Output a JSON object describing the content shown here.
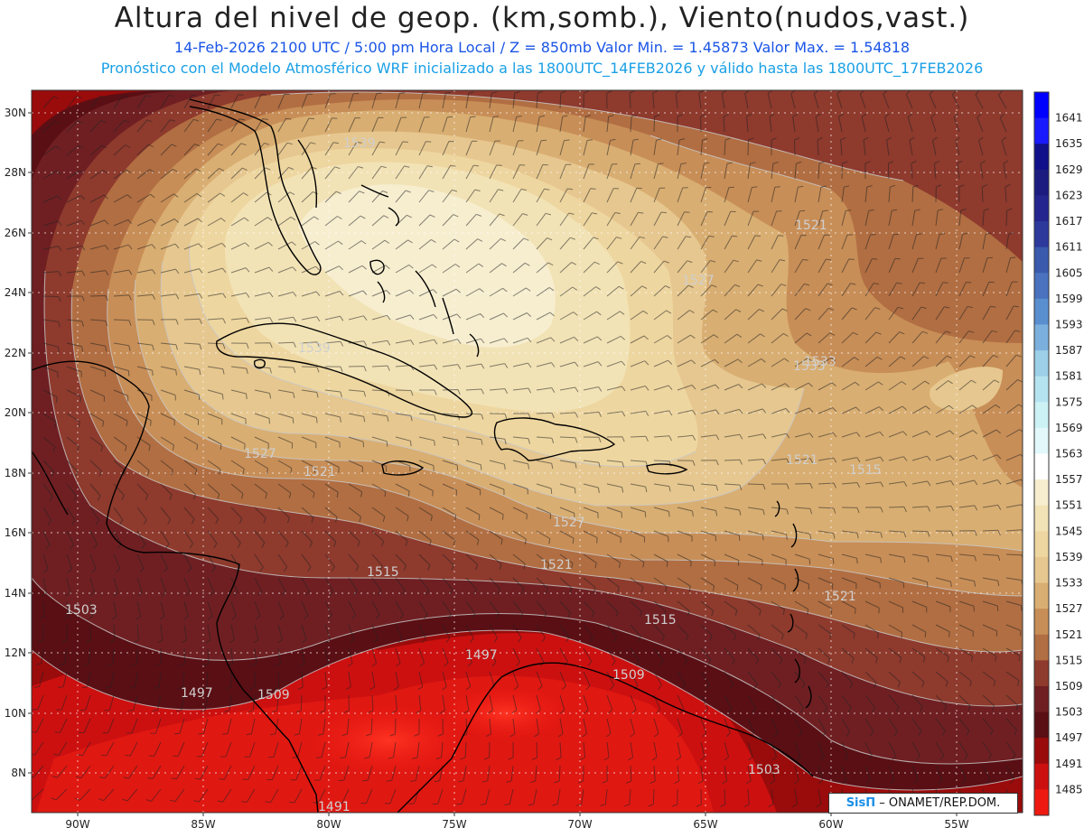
{
  "header": {
    "title": "Altura del nivel de geop. (km,somb.), Viento(nudos,vast.)",
    "line1": "14-Feb-2026  2100 UTC / 5:00 pm Hora Local / Z = 850mb     Valor Min. = 1.45873  Valor Max. = 1.54818",
    "line2": "Pronóstico con el Modelo Atmosférico WRF inicializado a las 1800UTC_14FEB2026 y válido hasta las  1800UTC_17FEB2026"
  },
  "map": {
    "lat_labels": [
      "30N",
      "28N",
      "26N",
      "24N",
      "22N",
      "20N",
      "18N",
      "16N",
      "14N",
      "12N",
      "10N",
      "8N"
    ],
    "lon_labels": [
      "90W",
      "85W",
      "80W",
      "75W",
      "70W",
      "65W",
      "60W",
      "55W"
    ],
    "contour_labels": [
      "1539",
      "1521",
      "1527",
      "1533",
      "1521",
      "1515",
      "1521",
      "1527",
      "1521",
      "1515",
      "1503",
      "1509",
      "1497",
      "1497",
      "1509",
      "1515",
      "1503",
      "1491",
      "1539",
      "1527",
      "1521",
      "1533"
    ]
  },
  "colorbar": {
    "levels": [
      "1641",
      "1635",
      "1629",
      "1623",
      "1617",
      "1611",
      "1605",
      "1599",
      "1593",
      "1587",
      "1581",
      "1575",
      "1569",
      "1563",
      "1557",
      "1551",
      "1545",
      "1539",
      "1533",
      "1527",
      "1521",
      "1515",
      "1509",
      "1503",
      "1497",
      "1491",
      "1485"
    ],
    "colors": [
      "#1a1aff",
      "#10108a",
      "#1c1c80",
      "#25258f",
      "#2d3a9c",
      "#3a5aad",
      "#4a72bf",
      "#5a8fcf",
      "#7bb0de",
      "#9ccfe8",
      "#b5e3f0",
      "#cdf2f6",
      "#e2f8fb",
      "#ffffff",
      "#f7eed0",
      "#f2e3b6",
      "#eed6a0",
      "#e6c78f",
      "#d9ae72",
      "#c88e57",
      "#b16e42",
      "#8e3a2d",
      "#6f1f22",
      "#5a0f14",
      "#9a0b0b",
      "#cc1010",
      "#ee1a12"
    ]
  },
  "credit": {
    "brand": "SisΠ",
    "text": "– ONAMET/REP.DOM."
  }
}
